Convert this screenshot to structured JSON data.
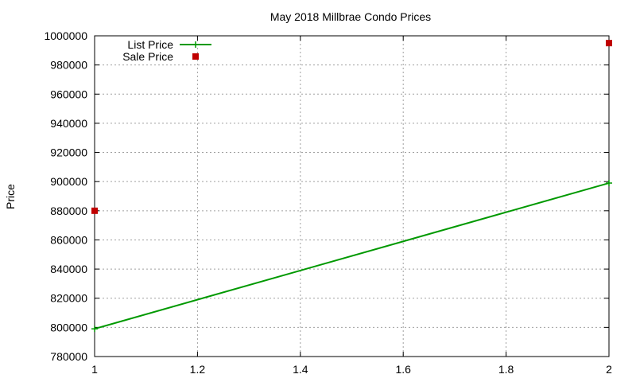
{
  "chart_data": {
    "type": "line",
    "title": "May 2018 Millbrae Condo Prices",
    "xlabel": "",
    "ylabel": "Price",
    "xlim": [
      1,
      2
    ],
    "ylim": [
      780000,
      1000000
    ],
    "x_ticks": [
      1,
      1.2,
      1.4,
      1.6,
      1.8,
      2
    ],
    "x_tick_labels": [
      "1",
      "1.2",
      "1.4",
      "1.6",
      "1.8",
      "2"
    ],
    "y_ticks": [
      780000,
      800000,
      820000,
      840000,
      860000,
      880000,
      900000,
      920000,
      940000,
      960000,
      980000,
      1000000
    ],
    "y_tick_labels": [
      "780000",
      "800000",
      "820000",
      "840000",
      "860000",
      "880000",
      "900000",
      "920000",
      "940000",
      "960000",
      "980000",
      "1000000"
    ],
    "grid": true,
    "legend_position": "top-left",
    "series": [
      {
        "name": "List Price",
        "style": "line",
        "color": "#009900",
        "x": [
          1,
          2
        ],
        "values": [
          799000,
          899000
        ]
      },
      {
        "name": "Sale Price",
        "style": "points",
        "color": "#c00000",
        "x": [
          1,
          2
        ],
        "values": [
          880000,
          995000
        ]
      }
    ]
  }
}
